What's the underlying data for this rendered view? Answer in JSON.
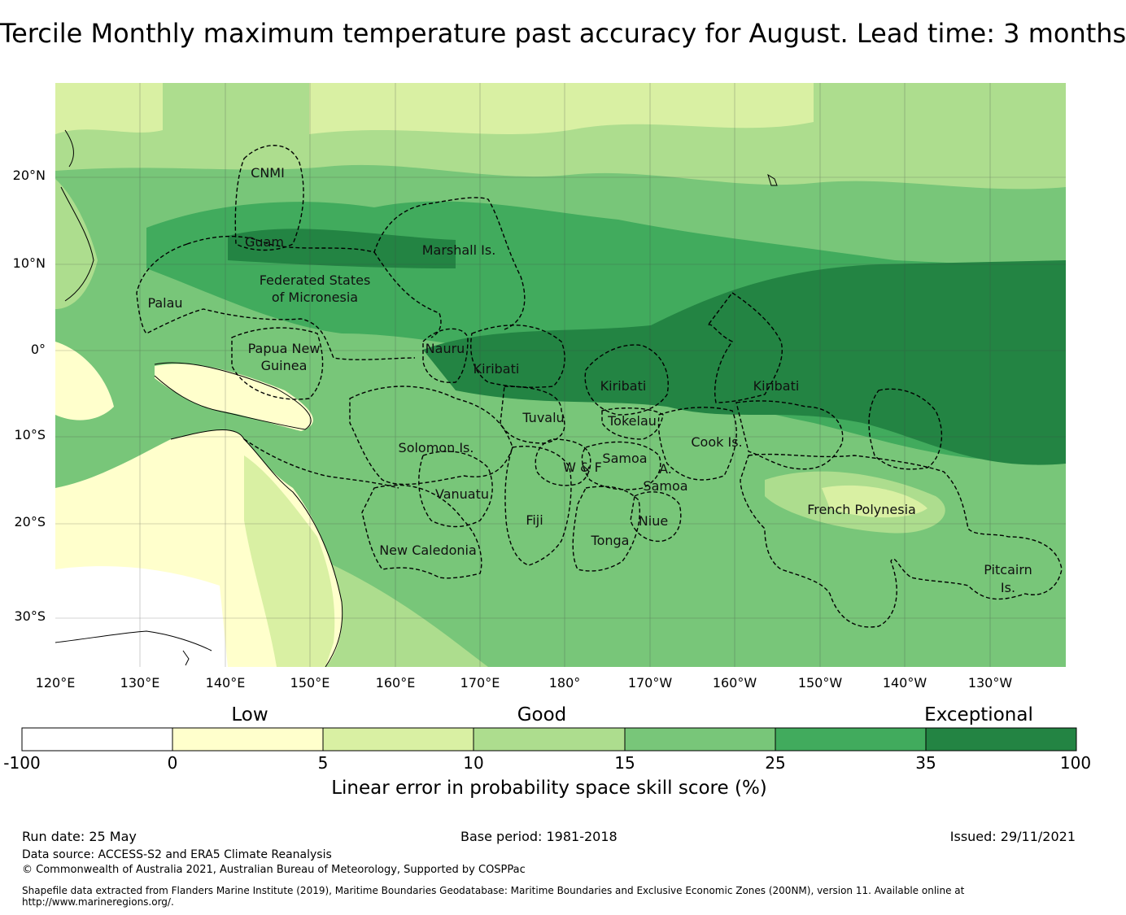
{
  "title": "Tercile Monthly maximum temperature past accuracy for August. Lead time: 3 months",
  "map": {
    "lat_ticks": [
      "20°N",
      "10°N",
      "0°",
      "10°S",
      "20°S",
      "30°S"
    ],
    "lon_ticks": [
      "120°E",
      "130°E",
      "140°E",
      "150°E",
      "160°E",
      "170°E",
      "180°",
      "170°W",
      "160°W",
      "150°W",
      "140°W",
      "130°W"
    ],
    "regions": [
      {
        "name": "CNMI",
        "lines": [
          "CNMI"
        ]
      },
      {
        "name": "Guam",
        "lines": [
          "Guam"
        ]
      },
      {
        "name": "Marshall Is.",
        "lines": [
          "Marshall Is."
        ]
      },
      {
        "name": "Federated States of Micronesia",
        "lines": [
          "Federated States",
          "of Micronesia"
        ]
      },
      {
        "name": "Palau",
        "lines": [
          "Palau"
        ]
      },
      {
        "name": "Papua New Guinea",
        "lines": [
          "Papua New",
          "Guinea"
        ]
      },
      {
        "name": "Nauru",
        "lines": [
          "Nauru"
        ]
      },
      {
        "name": "Kiribati (Gilbert)",
        "lines": [
          "Kiribati"
        ]
      },
      {
        "name": "Kiribati (Phoenix)",
        "lines": [
          "Kiribati"
        ]
      },
      {
        "name": "Kiribati (Line)",
        "lines": [
          "Kiribati"
        ]
      },
      {
        "name": "Tuvalu",
        "lines": [
          "Tuvalu"
        ]
      },
      {
        "name": "Tokelau",
        "lines": [
          "Tokelau"
        ]
      },
      {
        "name": "Solomon Is.",
        "lines": [
          "Solomon Is."
        ]
      },
      {
        "name": "Samoa",
        "lines": [
          "Samoa"
        ]
      },
      {
        "name": "W & F",
        "lines": [
          "W & F"
        ]
      },
      {
        "name": "A. Samoa",
        "lines": [
          "A.",
          "Samoa"
        ]
      },
      {
        "name": "Cook Is.",
        "lines": [
          "Cook Is."
        ]
      },
      {
        "name": "Vanuatu",
        "lines": [
          "Vanuatu"
        ]
      },
      {
        "name": "Fiji",
        "lines": [
          "Fiji"
        ]
      },
      {
        "name": "Niue",
        "lines": [
          "Niue"
        ]
      },
      {
        "name": "Tonga",
        "lines": [
          "Tonga"
        ]
      },
      {
        "name": "New Caledonia",
        "lines": [
          "New Caledonia"
        ]
      },
      {
        "name": "French Polynesia",
        "lines": [
          "French Polynesia"
        ]
      },
      {
        "name": "Pitcairn Is.",
        "lines": [
          "Pitcairn",
          "Is."
        ]
      }
    ]
  },
  "colorbar": {
    "categories": [
      "Low",
      "Good",
      "Exceptional"
    ],
    "ticks": [
      "-100",
      "0",
      "5",
      "10",
      "15",
      "25",
      "35",
      "100"
    ],
    "colors": [
      "#ffffff",
      "#ffffcc",
      "#d9f0a3",
      "#addd8e",
      "#78c679",
      "#41ab5d",
      "#238443"
    ],
    "label": "Linear error in probability space skill score (%)"
  },
  "footer": {
    "run_date": "Run date: 25 May",
    "base_period": "Base period: 1981-2018",
    "issued": "Issued: 29/11/2021",
    "data_source": "Data source: ACCESS-S2 and ERA5 Climate Reanalysis",
    "copyright": "© Commonwealth of Australia 2021, Australian Bureau of Meteorology, Supported by COSPPac",
    "shapefile": "Shapefile data extracted from Flanders Marine Institute (2019), Maritime Boundaries Geodatabase: Maritime Boundaries and Exclusive Economic Zones (200NM), version 11. Available online at http://www.marineregions.org/."
  }
}
